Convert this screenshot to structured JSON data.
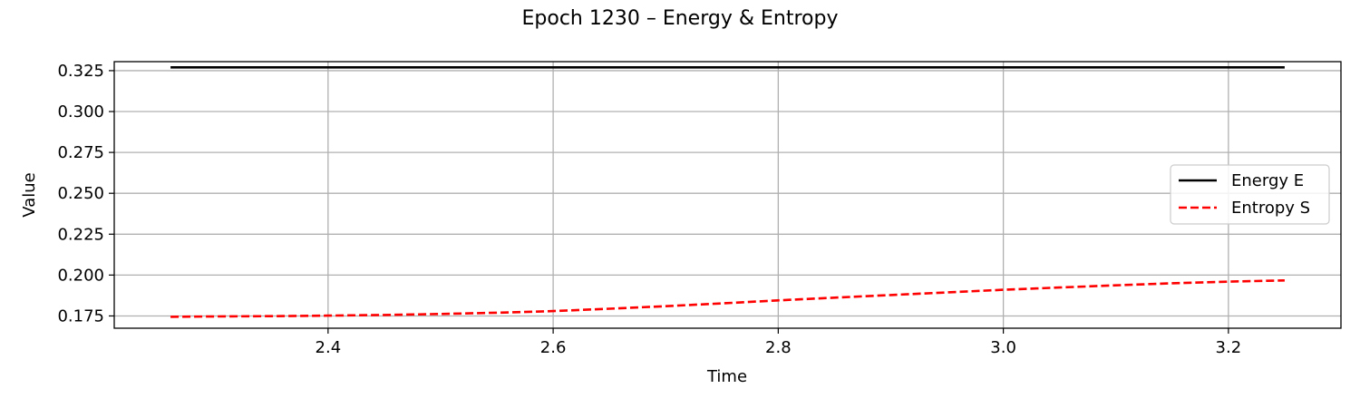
{
  "chart_data": {
    "type": "line",
    "title": "Epoch 1230 – Energy & Entropy",
    "xlabel": "Time",
    "ylabel": "Value",
    "xlim": [
      2.21,
      3.3
    ],
    "ylim": [
      0.1675,
      0.3305
    ],
    "xticks": [
      "2.4",
      "2.6",
      "2.8",
      "3.0",
      "3.2"
    ],
    "yticks": [
      "0.175",
      "0.200",
      "0.225",
      "0.250",
      "0.275",
      "0.300",
      "0.325"
    ],
    "grid": true,
    "legend_position": "right",
    "series": [
      {
        "name": "Energy E",
        "color": "#000000",
        "style": "solid",
        "x": [
          2.26,
          2.4,
          2.6,
          2.8,
          3.0,
          3.25
        ],
        "y": [
          0.327,
          0.327,
          0.327,
          0.327,
          0.327,
          0.327
        ]
      },
      {
        "name": "Entropy S",
        "color": "#ff0000",
        "style": "dashed",
        "x": [
          2.26,
          2.3,
          2.35,
          2.4,
          2.45,
          2.5,
          2.55,
          2.6,
          2.65,
          2.7,
          2.75,
          2.8,
          2.85,
          2.9,
          2.95,
          3.0,
          3.05,
          3.1,
          3.15,
          3.2,
          3.25
        ],
        "y": [
          0.1745,
          0.1747,
          0.1749,
          0.1752,
          0.1756,
          0.1762,
          0.177,
          0.178,
          0.1794,
          0.181,
          0.1827,
          0.1845,
          0.1862,
          0.1878,
          0.1894,
          0.191,
          0.1924,
          0.1937,
          0.195,
          0.196,
          0.1967
        ]
      }
    ]
  }
}
